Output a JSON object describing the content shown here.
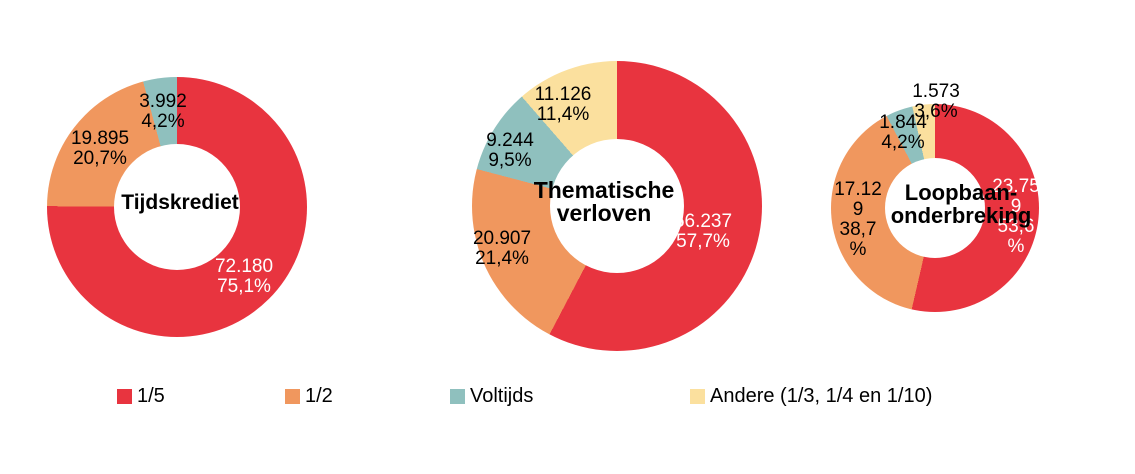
{
  "chart_data": {
    "type": "pie",
    "subtype": "donut",
    "background": "#ffffff",
    "charts": [
      {
        "title": "Tijdskrediet",
        "title_lines": [
          "Tijdskrediet"
        ],
        "segments": [
          {
            "name": "1/5",
            "value": 72180,
            "pct": 75.1,
            "color": "#e8343f",
            "label_color": "#ffffff",
            "label_lines": [
              "72.180",
              "75,1%"
            ]
          },
          {
            "name": "1/2",
            "value": 19895,
            "pct": 20.7,
            "color": "#f0975e",
            "label_color": "#000000",
            "label_lines": [
              "19.895",
              "20,7%"
            ]
          },
          {
            "name": "Voltijds",
            "value": 3992,
            "pct": 4.2,
            "color": "#8fc0be",
            "label_color": "#000000",
            "label_lines": [
              "3.992",
              "4,2%"
            ]
          }
        ]
      },
      {
        "title": "Thematische verloven",
        "title_lines": [
          "Thematische",
          "verloven"
        ],
        "segments": [
          {
            "name": "1/5",
            "value": 56237,
            "pct": 57.7,
            "color": "#e8343f",
            "label_color": "#ffffff",
            "label_lines": [
              "56.237",
              "57,7%"
            ]
          },
          {
            "name": "1/2",
            "value": 20907,
            "pct": 21.4,
            "color": "#f0975e",
            "label_color": "#000000",
            "label_lines": [
              "20.907",
              "21,4%"
            ]
          },
          {
            "name": "Voltijds",
            "value": 9244,
            "pct": 9.5,
            "color": "#8fc0be",
            "label_color": "#000000",
            "label_lines": [
              "9.244",
              "9,5%"
            ]
          },
          {
            "name": "Andere (1/3, 1/4 en 1/10)",
            "value": 11126,
            "pct": 11.4,
            "color": "#fbe09e",
            "label_color": "#000000",
            "label_lines": [
              "11.126",
              "11,4%"
            ]
          }
        ]
      },
      {
        "title": "Loopbaan-onderbreking",
        "title_lines": [
          "Loopbaan-",
          "onderbreking"
        ],
        "segments": [
          {
            "name": "1/5",
            "value": 23759,
            "pct": 53.6,
            "color": "#e8343f",
            "label_color": "#ffffff",
            "label_lines": [
              "23.75",
              "9",
              "53,6",
              "%"
            ]
          },
          {
            "name": "1/2",
            "value": 17129,
            "pct": 38.7,
            "color": "#f0975e",
            "label_color": "#000000",
            "label_lines": [
              "17.12",
              "9",
              "38,7",
              "%"
            ]
          },
          {
            "name": "Voltijds",
            "value": 1844,
            "pct": 4.2,
            "color": "#8fc0be",
            "label_color": "#000000",
            "label_lines": [
              "1.844",
              "4,2%"
            ]
          },
          {
            "name": "Andere (1/3, 1/4 en 1/10)",
            "value": 1573,
            "pct": 3.6,
            "color": "#fbe09e",
            "label_color": "#000000",
            "label_lines": [
              "1.573",
              "3,6%"
            ]
          }
        ]
      }
    ],
    "legend": {
      "position": "bottom",
      "items": [
        {
          "label": "1/5",
          "color": "#e8343f"
        },
        {
          "label": "1/2",
          "color": "#f0975e"
        },
        {
          "label": "Voltijds",
          "color": "#8fc0be"
        },
        {
          "label": "Andere (1/3, 1/4 en 1/10)",
          "color": "#fbe09e"
        }
      ]
    }
  }
}
